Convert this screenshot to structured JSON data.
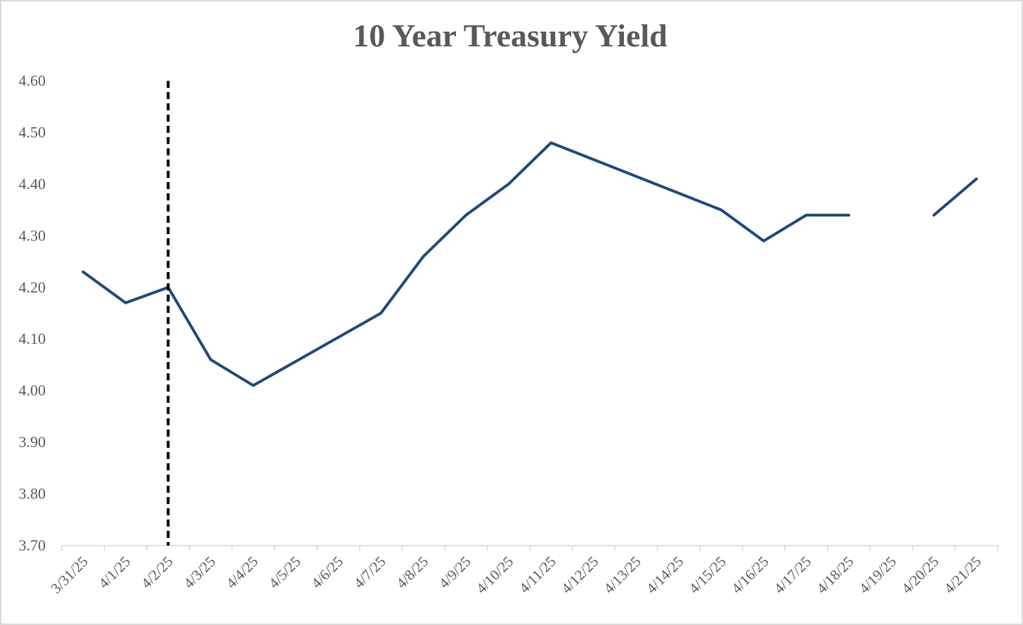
{
  "chart_data": {
    "type": "line",
    "title": "10 Year Treasury Yield",
    "xlabel": "",
    "ylabel": "",
    "ylim": [
      3.7,
      4.6
    ],
    "ytick_step": 0.1,
    "grid": false,
    "legend": "none",
    "categories": [
      "3/31/25",
      "4/1/25",
      "4/2/25",
      "4/3/25",
      "4/4/25",
      "4/5/25",
      "4/6/25",
      "4/7/25",
      "4/8/25",
      "4/9/25",
      "4/10/25",
      "4/11/25",
      "4/12/25",
      "4/13/25",
      "4/14/25",
      "4/15/25",
      "4/16/25",
      "4/17/25",
      "4/18/25",
      "4/19/25",
      "4/20/25",
      "4/21/25"
    ],
    "series": [
      {
        "values": [
          4.23,
          4.17,
          4.2,
          4.06,
          4.01,
          null,
          null,
          4.15,
          4.26,
          4.34,
          4.4,
          4.48,
          null,
          null,
          null,
          4.35,
          4.29,
          4.34,
          4.34,
          null,
          4.34,
          4.41
        ],
        "gap_policy": "interpolate-except-end",
        "color": "#1f497d"
      }
    ],
    "annotations": [
      {
        "type": "vertical-dashed-line",
        "at": "4/2/25",
        "color": "#000000"
      }
    ]
  }
}
